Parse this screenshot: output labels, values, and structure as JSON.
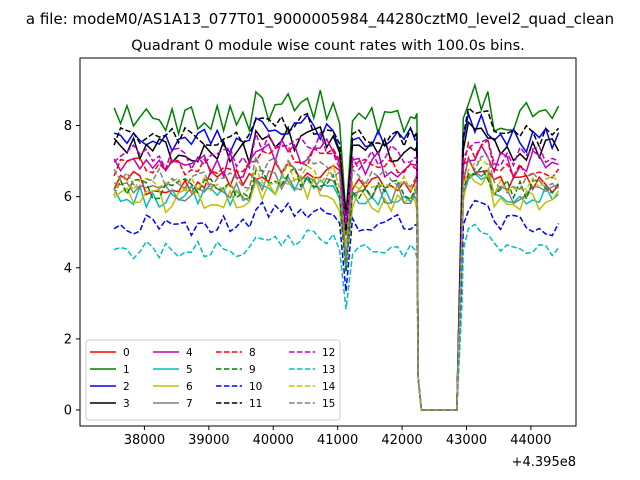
{
  "chart_data": {
    "type": "line",
    "suptitle": "a file: modeM0/AS1A13_077T01_9000005984_44280cztM0_level2_quad_clean",
    "title": "Quadrant 0 module wise count rates with 100.0s bins.",
    "xlabel": "",
    "ylabel": "",
    "x_offset_label": "+4.395e8",
    "xlim": [
      37000,
      44700
    ],
    "ylim": [
      -0.45,
      9.9
    ],
    "xticks": [
      38000,
      39000,
      40000,
      41000,
      42000,
      43000,
      44000
    ],
    "xtick_labels": [
      "38000",
      "39000",
      "40000",
      "41000",
      "42000",
      "43000",
      "44000"
    ],
    "yticks": [
      0,
      2,
      4,
      6,
      8
    ],
    "ytick_labels": [
      "0",
      "2",
      "4",
      "6",
      "8"
    ],
    "grid": false,
    "legend_position": "lower-left",
    "legend_columns": 4,
    "x_start": 37530,
    "x_step": 100,
    "gap_start": 42300,
    "gap_end": 42850,
    "series": [
      {
        "name": "0",
        "color": "#ff0000",
        "dash": "solid",
        "level": 6.4,
        "amp": 0.35,
        "seed": 1
      },
      {
        "name": "1",
        "color": "#008000",
        "dash": "solid",
        "level": 8.2,
        "amp": 0.45,
        "seed": 2
      },
      {
        "name": "2",
        "color": "#0000ff",
        "dash": "solid",
        "level": 7.6,
        "amp": 0.35,
        "seed": 3
      },
      {
        "name": "3",
        "color": "#000000",
        "dash": "solid",
        "level": 7.3,
        "amp": 0.35,
        "seed": 4
      },
      {
        "name": "4",
        "color": "#bf00bf",
        "dash": "solid",
        "level": 6.9,
        "amp": 0.4,
        "seed": 5
      },
      {
        "name": "5",
        "color": "#00bfbf",
        "dash": "solid",
        "level": 6.0,
        "amp": 0.3,
        "seed": 6
      },
      {
        "name": "6",
        "color": "#bfbf00",
        "dash": "solid",
        "level": 5.9,
        "amp": 0.35,
        "seed": 7
      },
      {
        "name": "7",
        "color": "#808080",
        "dash": "solid",
        "level": 6.1,
        "amp": 0.3,
        "seed": 8
      },
      {
        "name": "8",
        "color": "#ff0000",
        "dash": "dashed",
        "level": 6.8,
        "amp": 0.3,
        "seed": 9
      },
      {
        "name": "9",
        "color": "#008000",
        "dash": "dashed",
        "level": 6.2,
        "amp": 0.3,
        "seed": 10
      },
      {
        "name": "10",
        "color": "#0000ff",
        "dash": "dashed",
        "level": 5.2,
        "amp": 0.3,
        "seed": 11
      },
      {
        "name": "11",
        "color": "#000000",
        "dash": "dashed",
        "level": 7.7,
        "amp": 0.3,
        "seed": 12
      },
      {
        "name": "12",
        "color": "#bf00bf",
        "dash": "dashed",
        "level": 7.1,
        "amp": 0.35,
        "seed": 13
      },
      {
        "name": "13",
        "color": "#00bfbf",
        "dash": "dashed",
        "level": 4.5,
        "amp": 0.25,
        "seed": 14
      },
      {
        "name": "14",
        "color": "#bfbf00",
        "dash": "dashed",
        "level": 6.3,
        "amp": 0.3,
        "seed": 15
      },
      {
        "name": "15",
        "color": "#808080",
        "dash": "dashed",
        "level": 6.5,
        "amp": 0.3,
        "seed": 16
      }
    ]
  }
}
